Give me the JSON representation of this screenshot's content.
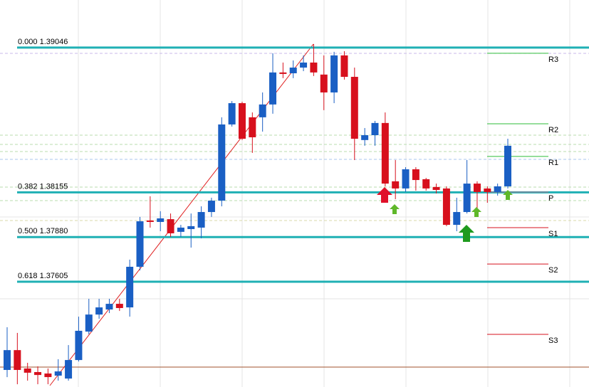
{
  "chart_data": {
    "type": "candlestick",
    "ylim": [
      1.36957,
      1.39339
    ],
    "up_color": "#1a5fc4",
    "down_color": "#d7101d",
    "open": [
      1.37062,
      1.37184,
      1.37071,
      1.37049,
      1.3704,
      1.37027,
      1.37009,
      1.37123,
      1.37298,
      1.37403,
      1.37434,
      1.37469,
      1.37447,
      1.37697,
      1.37982,
      1.37973,
      1.3799,
      1.37912,
      1.37929,
      1.37938,
      1.38034,
      1.38104,
      1.38573,
      1.38704,
      1.38617,
      1.38617,
      1.38696,
      1.38893,
      1.38888,
      1.38923,
      1.38954,
      1.3888,
      1.3877,
      1.38998,
      1.38866,
      1.38477,
      1.38507,
      1.38582,
      1.38223,
      1.38179,
      1.38297,
      1.38236,
      1.38188,
      1.38179,
      1.37955,
      1.38034,
      1.38209,
      1.38179,
      1.38157,
      1.38192
    ],
    "high": [
      1.37325,
      1.3729,
      1.37106,
      1.37084,
      1.37071,
      1.37128,
      1.37215,
      1.3739,
      1.375,
      1.375,
      1.375,
      1.375,
      1.37741,
      1.38004,
      1.38131,
      1.38039,
      1.38025,
      1.37955,
      1.38025,
      1.38069,
      1.38122,
      1.38617,
      1.38717,
      1.38713,
      1.38647,
      1.3877,
      1.39011,
      1.38954,
      1.38967,
      1.38998,
      1.39068,
      1.38998,
      1.3902,
      1.39024,
      1.38923,
      1.38551,
      1.38595,
      1.38647,
      1.38354,
      1.3831,
      1.3831,
      1.38244,
      1.38209,
      1.38192,
      1.38122,
      1.38354,
      1.38223,
      1.38192,
      1.38209,
      1.38485
    ],
    "low": [
      1.37018,
      1.36974,
      1.36996,
      1.36974,
      1.36974,
      1.36996,
      1.36996,
      1.37114,
      1.37281,
      1.37377,
      1.37412,
      1.37425,
      1.3739,
      1.37675,
      1.37938,
      1.37916,
      1.37881,
      1.37881,
      1.37815,
      1.37872,
      1.38004,
      1.38069,
      1.3856,
      1.38477,
      1.38398,
      1.38529,
      1.38639,
      1.38858,
      1.38858,
      1.38901,
      1.38871,
      1.38661,
      1.38704,
      1.38849,
      1.38354,
      1.38442,
      1.38442,
      1.38192,
      1.38113,
      1.38157,
      1.38166,
      1.38166,
      1.38148,
      1.37947,
      1.37916,
      1.38025,
      1.38025,
      1.38091,
      1.38135,
      1.38179
    ],
    "close": [
      1.37184,
      1.37062,
      1.37045,
      1.37031,
      1.37018,
      1.37053,
      1.37123,
      1.37303,
      1.37403,
      1.37447,
      1.37469,
      1.37443,
      1.37697,
      1.37977,
      1.37973,
      1.37995,
      1.37903,
      1.37938,
      1.37947,
      1.38034,
      1.38104,
      1.38573,
      1.38704,
      1.38485,
      1.38494,
      1.38696,
      1.38893,
      1.38884,
      1.38923,
      1.38954,
      1.38893,
      1.3877,
      1.38998,
      1.38866,
      1.38485,
      1.38507,
      1.38582,
      1.38209,
      1.38179,
      1.38297,
      1.38231,
      1.38179,
      1.3817,
      1.37955,
      1.38034,
      1.38209,
      1.38157,
      1.38157,
      1.38192,
      1.38442
    ],
    "fibo_color": "#1fb0b4",
    "fibo_levels": [
      {
        "label": "0.000 1.39046",
        "value": 1.39046
      },
      {
        "label": "0.382 1.38155",
        "value": 1.38155
      },
      {
        "label": "0.500 1.37880",
        "value": 1.3788
      },
      {
        "label": "0.618 1.37605",
        "value": 1.37605
      }
    ],
    "pivots": [
      {
        "label": "R3",
        "value": 1.39011,
        "color": "#2ebd3a"
      },
      {
        "label": "R2",
        "value": 1.38577,
        "color": "#2ebd3a"
      },
      {
        "label": "R1",
        "value": 1.38376,
        "color": "#2ebd3a"
      },
      {
        "label": "P",
        "value": 1.38157,
        "color": "#6a8fa0"
      },
      {
        "label": "S1",
        "value": 1.37938,
        "color": "#d7101d"
      },
      {
        "label": "S2",
        "value": 1.37714,
        "color": "#d7101d"
      },
      {
        "label": "S3",
        "value": 1.37281,
        "color": "#d7101d"
      }
    ]
  }
}
